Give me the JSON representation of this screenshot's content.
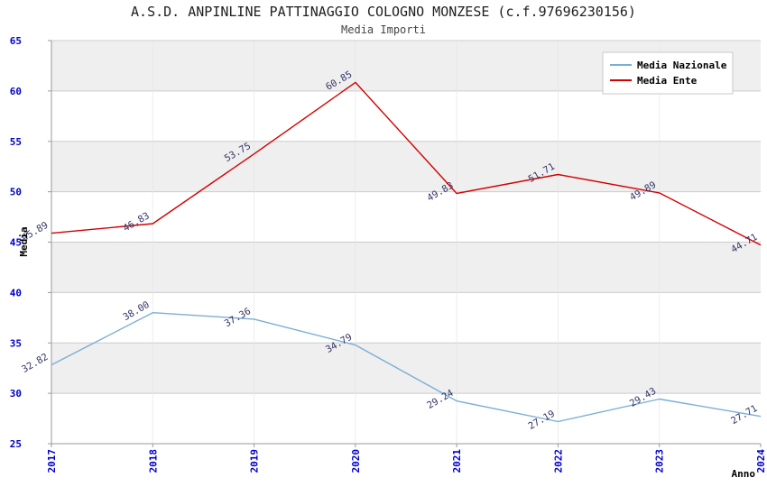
{
  "chart_data": {
    "type": "line",
    "title": "A.S.D. ANPINLINE PATTINAGGIO COLOGNO MONZESE (c.f.97696230156)",
    "subtitle": "Media Importi",
    "xlabel": "Anno",
    "ylabel": "Media",
    "ylim": [
      25,
      65
    ],
    "ytick_step": 5,
    "yticks": [
      25,
      30,
      35,
      40,
      45,
      50,
      55,
      60,
      65
    ],
    "categories": [
      "2017",
      "2018",
      "2019",
      "2020",
      "2021",
      "2022",
      "2023",
      "2024"
    ],
    "series": [
      {
        "name": "Media Nazionale",
        "color": "#7aaed6",
        "values": [
          32.82,
          38.0,
          37.36,
          34.79,
          29.24,
          27.19,
          29.43,
          27.71
        ]
      },
      {
        "name": "Media Ente",
        "color": "#d40000",
        "values": [
          45.89,
          46.83,
          53.75,
          60.85,
          49.83,
          51.71,
          49.89,
          44.71
        ]
      }
    ],
    "legend_position": "top-right",
    "grid": true,
    "band_colors": [
      "#ffffff",
      "#efefef"
    ],
    "gridline_color": "#cccccc",
    "vgrid_color": "#e6e6e6",
    "axis_color": "#9a9a9a",
    "tick_color": "#0000cc",
    "label_color": "#333366",
    "legend_border_color": "#c8c8c8"
  }
}
